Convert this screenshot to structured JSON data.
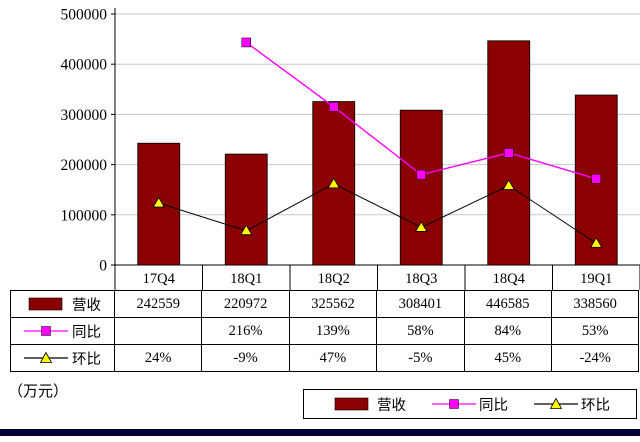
{
  "unit_label": "（万元）",
  "chart_data": {
    "type": "bar-line-combo",
    "categories": [
      "17Q4",
      "18Q1",
      "18Q2",
      "18Q3",
      "18Q4",
      "19Q1"
    ],
    "series": [
      {
        "key": "revenue",
        "name": "营收",
        "type": "bar",
        "color": "#8B0000",
        "axis": "primary",
        "values": [
          242559,
          220972,
          325562,
          308401,
          446585,
          338560
        ]
      },
      {
        "key": "yoy",
        "name": "同比",
        "type": "line",
        "color": "#FF00FF",
        "marker": "square",
        "marker_color": "#FF00FF",
        "axis": "secondary",
        "values_pct": [
          null,
          216,
          139,
          58,
          84,
          53
        ]
      },
      {
        "key": "qoq",
        "name": "环比",
        "type": "line",
        "color": "#000000",
        "marker": "triangle",
        "marker_color": "#FFFF00",
        "axis": "secondary",
        "values_pct": [
          24,
          -9,
          47,
          -5,
          45,
          -24
        ]
      }
    ],
    "primary_axis": {
      "min": 0,
      "max": 500000,
      "ticks": [
        0,
        100000,
        200000,
        300000,
        400000,
        500000
      ]
    },
    "secondary_axis": {
      "min": -50,
      "max": 250,
      "visible": false
    },
    "grid": true,
    "legend_position": "bottom"
  },
  "table": {
    "rows": [
      {
        "key": "revenue",
        "label": "营收",
        "cells": [
          "242559",
          "220972",
          "325562",
          "308401",
          "446585",
          "338560"
        ]
      },
      {
        "key": "yoy",
        "label": "同比",
        "cells": [
          "",
          "216%",
          "139%",
          "58%",
          "84%",
          "53%"
        ]
      },
      {
        "key": "qoq",
        "label": "环比",
        "cells": [
          "24%",
          "-9%",
          "47%",
          "-5%",
          "45%",
          "-24%"
        ]
      }
    ]
  },
  "legend": {
    "items": [
      {
        "key": "revenue",
        "label": "营收"
      },
      {
        "key": "yoy",
        "label": "同比"
      },
      {
        "key": "qoq",
        "label": "环比"
      }
    ]
  }
}
